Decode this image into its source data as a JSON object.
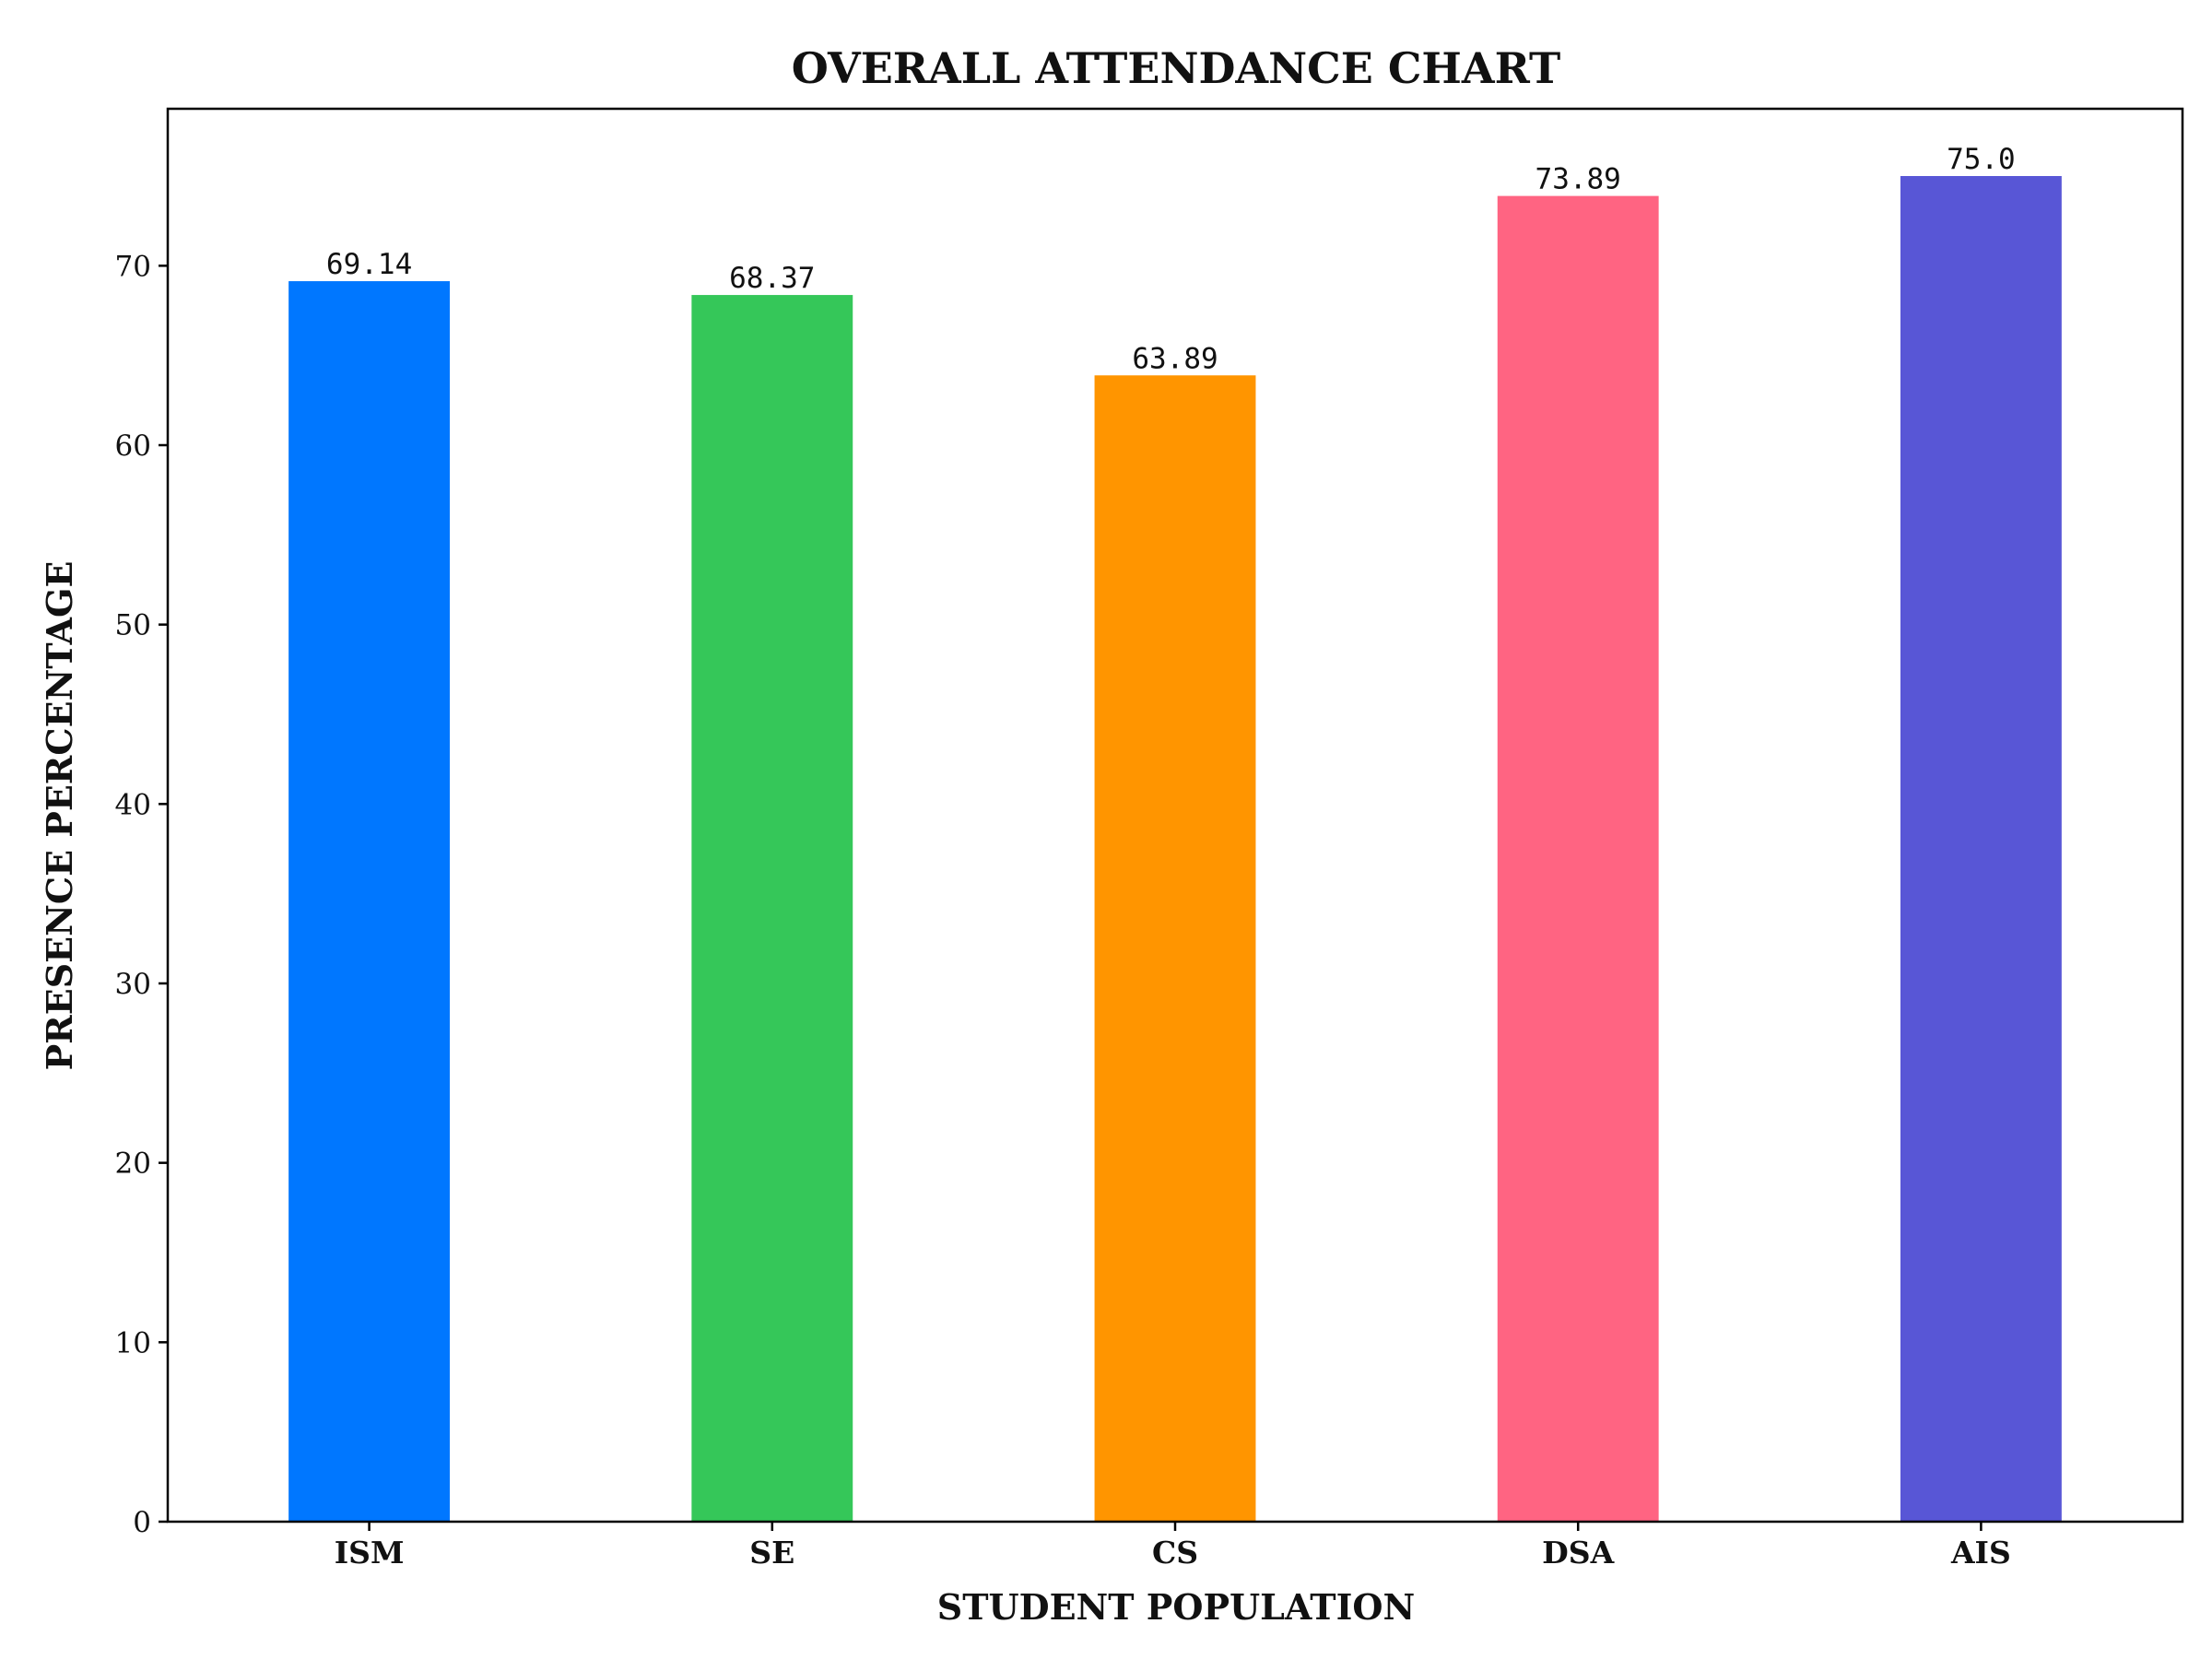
{
  "chart_data": {
    "type": "bar",
    "title": "OVERALL ATTENDANCE CHART",
    "xlabel": "STUDENT POPULATION",
    "ylabel": "PRESENCE PERCENTAGE",
    "categories": [
      "ISM",
      "SE",
      "CS",
      "DSA",
      "AIS"
    ],
    "values": [
      69.14,
      68.37,
      63.89,
      73.89,
      75.0
    ],
    "value_labels": [
      "69.14",
      "68.37",
      "63.89",
      "73.89",
      "75.0"
    ],
    "colors": [
      "#0077FF",
      "#35C759",
      "#FF9500",
      "#FF6482",
      "#5856D6"
    ],
    "ylim": [
      0,
      78.75
    ],
    "yticks": [
      0,
      10,
      20,
      30,
      40,
      50,
      60,
      70
    ],
    "grid": false,
    "legend": "none"
  }
}
